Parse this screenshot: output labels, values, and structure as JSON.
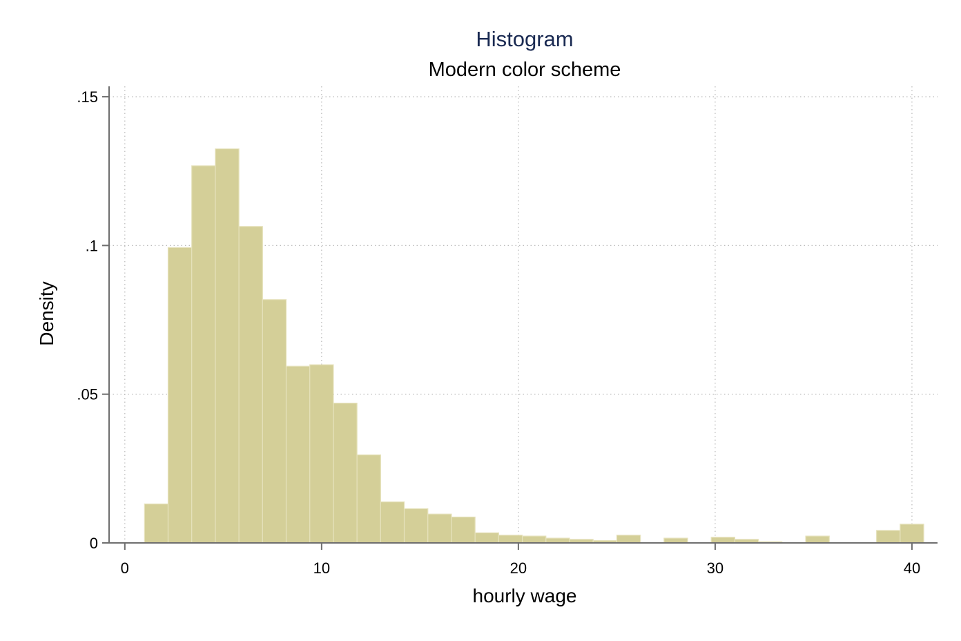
{
  "chart_data": {
    "type": "bar",
    "title": "Histogram",
    "subtitle": "Modern color scheme",
    "xlabel": "hourly wage",
    "ylabel": "Density",
    "xlim": [
      -0.8,
      41.3
    ],
    "ylim": [
      0,
      0.1535
    ],
    "xticks": [
      {
        "value": 0,
        "label": "0"
      },
      {
        "value": 10,
        "label": "10"
      },
      {
        "value": 20,
        "label": "20"
      },
      {
        "value": 30,
        "label": "30"
      },
      {
        "value": 40,
        "label": "40"
      }
    ],
    "yticks": [
      {
        "value": 0,
        "label": "0"
      },
      {
        "value": 0.05,
        "label": ".05"
      },
      {
        "value": 0.1,
        "label": ".1"
      },
      {
        "value": 0.15,
        "label": ".15"
      }
    ],
    "grid": true,
    "bar_color": "#d4cf98",
    "bar_edge_color": "#e6e2bc",
    "bin_width": 1.197,
    "bins": [
      {
        "x0": 1.0,
        "x1": 2.2,
        "density": 0.0131
      },
      {
        "x0": 2.2,
        "x1": 3.4,
        "density": 0.0993
      },
      {
        "x0": 3.4,
        "x1": 4.6,
        "density": 0.1268
      },
      {
        "x0": 4.6,
        "x1": 5.8,
        "density": 0.1325
      },
      {
        "x0": 5.8,
        "x1": 7.0,
        "density": 0.1064
      },
      {
        "x0": 7.0,
        "x1": 8.2,
        "density": 0.0818
      },
      {
        "x0": 8.2,
        "x1": 9.4,
        "density": 0.0594
      },
      {
        "x0": 9.4,
        "x1": 10.6,
        "density": 0.0599
      },
      {
        "x0": 10.6,
        "x1": 11.8,
        "density": 0.047
      },
      {
        "x0": 11.8,
        "x1": 13.0,
        "density": 0.0296
      },
      {
        "x0": 13.0,
        "x1": 14.2,
        "density": 0.0138
      },
      {
        "x0": 14.2,
        "x1": 15.4,
        "density": 0.0115
      },
      {
        "x0": 15.4,
        "x1": 16.6,
        "density": 0.0097
      },
      {
        "x0": 16.6,
        "x1": 17.8,
        "density": 0.0087
      },
      {
        "x0": 17.8,
        "x1": 19.0,
        "density": 0.0034
      },
      {
        "x0": 19.0,
        "x1": 20.2,
        "density": 0.0026
      },
      {
        "x0": 20.2,
        "x1": 21.4,
        "density": 0.0023
      },
      {
        "x0": 21.4,
        "x1": 22.6,
        "density": 0.0016
      },
      {
        "x0": 22.6,
        "x1": 23.8,
        "density": 0.0012
      },
      {
        "x0": 23.8,
        "x1": 25.0,
        "density": 0.0008
      },
      {
        "x0": 25.0,
        "x1": 26.2,
        "density": 0.0026
      },
      {
        "x0": 26.2,
        "x1": 27.4,
        "density": 0.0
      },
      {
        "x0": 27.4,
        "x1": 28.6,
        "density": 0.0016
      },
      {
        "x0": 28.6,
        "x1": 29.8,
        "density": 0.0
      },
      {
        "x0": 29.8,
        "x1": 31.0,
        "density": 0.0019
      },
      {
        "x0": 31.0,
        "x1": 32.2,
        "density": 0.0012
      },
      {
        "x0": 32.2,
        "x1": 33.4,
        "density": 0.0004
      },
      {
        "x0": 33.4,
        "x1": 34.6,
        "density": 0.0
      },
      {
        "x0": 34.6,
        "x1": 35.8,
        "density": 0.0023
      },
      {
        "x0": 35.8,
        "x1": 37.0,
        "density": 0.0
      },
      {
        "x0": 37.0,
        "x1": 38.2,
        "density": 0.0
      },
      {
        "x0": 38.2,
        "x1": 39.4,
        "density": 0.0042
      },
      {
        "x0": 39.4,
        "x1": 40.6,
        "density": 0.0063
      }
    ]
  }
}
